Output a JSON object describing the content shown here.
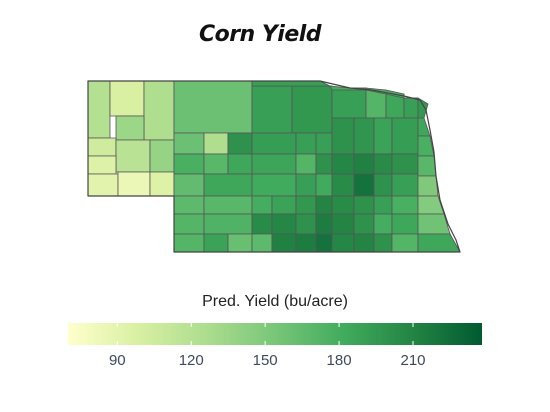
{
  "title": "Corn Yield",
  "legend": {
    "title": "Pred. Yield (bu/acre)",
    "ticks": [
      90,
      120,
      150,
      180,
      210
    ],
    "min": 70,
    "max": 238,
    "colors": [
      "#ffffcc",
      "#d9f0a3",
      "#addd8e",
      "#78c679",
      "#41ab5d",
      "#238443",
      "#005a32"
    ]
  },
  "map": {
    "state": "Nebraska",
    "counties": [
      {
        "id": "c01",
        "v": 122
      },
      {
        "id": "c02",
        "v": 98
      },
      {
        "id": "c03",
        "v": 125
      },
      {
        "id": "c04",
        "v": 160
      },
      {
        "id": "c05",
        "v": 190
      },
      {
        "id": "c06",
        "v": 196
      },
      {
        "id": "c07",
        "v": 190
      },
      {
        "id": "c08",
        "v": 172
      },
      {
        "id": "c09",
        "v": 185
      },
      {
        "id": "c10",
        "v": 190
      },
      {
        "id": "c11",
        "v": 135
      },
      {
        "id": "c12",
        "v": 105
      },
      {
        "id": "c13",
        "v": 118
      },
      {
        "id": "c14",
        "v": 160
      },
      {
        "id": "c15",
        "v": 192
      },
      {
        "id": "c16",
        "v": 190
      },
      {
        "id": "c17",
        "v": 190
      },
      {
        "id": "c18",
        "v": 200
      },
      {
        "id": "c19",
        "v": 198
      },
      {
        "id": "c20",
        "v": 188
      },
      {
        "id": "c21",
        "v": 192
      },
      {
        "id": "c22",
        "v": 95
      },
      {
        "id": "c23",
        "v": 138
      },
      {
        "id": "c24",
        "v": 125
      },
      {
        "id": "c25",
        "v": 200
      },
      {
        "id": "c26",
        "v": 178
      },
      {
        "id": "c27",
        "v": 170
      },
      {
        "id": "c28",
        "v": 185
      },
      {
        "id": "c29",
        "v": 186
      },
      {
        "id": "c30",
        "v": 172
      },
      {
        "id": "c31",
        "v": 200
      },
      {
        "id": "c32",
        "v": 208
      },
      {
        "id": "c33",
        "v": 212
      },
      {
        "id": "c34",
        "v": 205
      },
      {
        "id": "c35",
        "v": 200
      },
      {
        "id": "c36",
        "v": 92
      },
      {
        "id": "c37",
        "v": 85
      },
      {
        "id": "c38",
        "v": 95
      },
      {
        "id": "c39",
        "v": 165
      },
      {
        "id": "c40",
        "v": 185
      },
      {
        "id": "c41",
        "v": 182
      },
      {
        "id": "c42",
        "v": 190
      },
      {
        "id": "c43",
        "v": 182
      },
      {
        "id": "c44",
        "v": 205
      },
      {
        "id": "c45",
        "v": 222
      },
      {
        "id": "c46",
        "v": 200
      },
      {
        "id": "c47",
        "v": 190
      },
      {
        "id": "c48",
        "v": 168
      },
      {
        "id": "c49",
        "v": 170
      },
      {
        "id": "c50",
        "v": 180
      },
      {
        "id": "c51",
        "v": 188
      },
      {
        "id": "c52",
        "v": 196
      },
      {
        "id": "c53",
        "v": 210
      },
      {
        "id": "c54",
        "v": 205
      },
      {
        "id": "c55",
        "v": 200
      },
      {
        "id": "c56",
        "v": 190
      },
      {
        "id": "c57",
        "v": 178
      },
      {
        "id": "c58",
        "v": 172
      },
      {
        "id": "c59",
        "v": 175
      },
      {
        "id": "c60",
        "v": 205
      },
      {
        "id": "c61",
        "v": 208
      },
      {
        "id": "c62",
        "v": 200
      },
      {
        "id": "c63",
        "v": 215
      },
      {
        "id": "c64",
        "v": 210
      },
      {
        "id": "c65",
        "v": 200
      },
      {
        "id": "c66",
        "v": 180
      },
      {
        "id": "c67",
        "v": 185
      },
      {
        "id": "c68",
        "v": 172
      },
      {
        "id": "c69",
        "v": 188
      },
      {
        "id": "c70",
        "v": 162
      },
      {
        "id": "c71",
        "v": 168
      },
      {
        "id": "c72",
        "v": 212
      },
      {
        "id": "c73",
        "v": 215
      },
      {
        "id": "c74",
        "v": 222
      },
      {
        "id": "c75",
        "v": 208
      },
      {
        "id": "c76",
        "v": 210
      },
      {
        "id": "c77",
        "v": 200
      },
      {
        "id": "c78",
        "v": 195
      },
      {
        "id": "c79",
        "v": 185
      },
      {
        "id": "c80",
        "v": 178
      },
      {
        "id": "c81",
        "v": 170
      },
      {
        "id": "c82",
        "v": 150
      },
      {
        "id": "c83",
        "v": 148
      },
      {
        "id": "c84",
        "v": 158
      },
      {
        "id": "c85",
        "v": 172
      },
      {
        "id": "c86",
        "v": 185
      },
      {
        "id": "c87",
        "v": 190
      },
      {
        "id": "c88",
        "v": 180
      },
      {
        "id": "c89",
        "v": 178
      },
      {
        "id": "c90",
        "v": 172
      },
      {
        "id": "c91",
        "v": 175
      },
      {
        "id": "c92",
        "v": 188
      }
    ]
  }
}
